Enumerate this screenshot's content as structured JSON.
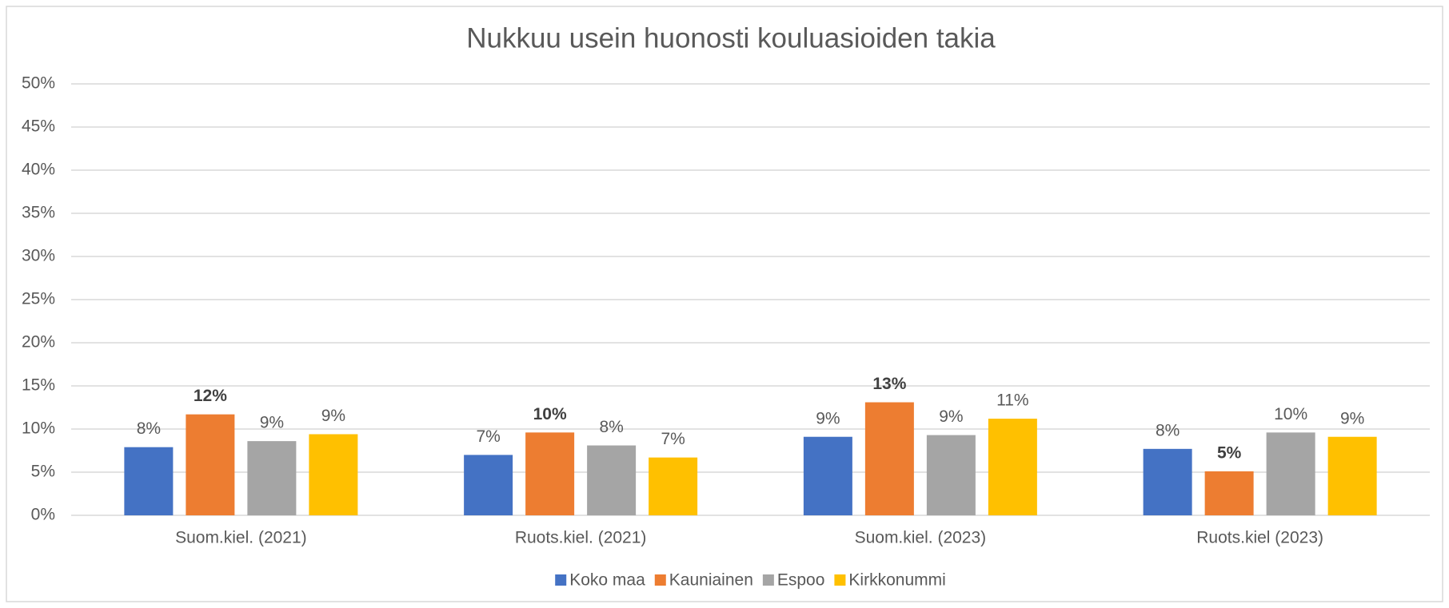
{
  "chart_data": {
    "type": "bar",
    "title": "Nukkuu usein huonosti kouluasioiden takia",
    "categories": [
      "Suom.kiel. (2021)",
      "Ruots.kiel. (2021)",
      "Suom.kiel. (2023)",
      "Ruots.kiel (2023)"
    ],
    "series": [
      {
        "name": "Koko maa",
        "color": "#4472c4",
        "values": [
          7.9,
          7.0,
          9.1,
          7.7
        ],
        "value_labels": [
          "8%",
          "7%",
          "9%",
          "8%"
        ],
        "label_bold": false
      },
      {
        "name": "Kauniainen",
        "color": "#ed7d31",
        "values": [
          11.7,
          9.6,
          13.1,
          5.1
        ],
        "value_labels": [
          "12%",
          "10%",
          "13%",
          "5%"
        ],
        "label_bold": true
      },
      {
        "name": "Espoo",
        "color": "#a5a5a5",
        "values": [
          8.6,
          8.1,
          9.3,
          9.6
        ],
        "value_labels": [
          "9%",
          "8%",
          "9%",
          "10%"
        ],
        "label_bold": false
      },
      {
        "name": "Kirkkonummi",
        "color": "#ffc000",
        "values": [
          9.4,
          6.7,
          11.2,
          9.1
        ],
        "value_labels": [
          "9%",
          "7%",
          "11%",
          "9%"
        ],
        "label_bold": false
      }
    ],
    "ylim": [
      0,
      50
    ],
    "yticks": [
      {
        "value": 0,
        "label": "0%"
      },
      {
        "value": 5,
        "label": "5%"
      },
      {
        "value": 10,
        "label": "10%"
      },
      {
        "value": 15,
        "label": "15%"
      },
      {
        "value": 20,
        "label": "20%"
      },
      {
        "value": 25,
        "label": "25%"
      },
      {
        "value": 30,
        "label": "30%"
      },
      {
        "value": 35,
        "label": "35%"
      },
      {
        "value": 40,
        "label": "40%"
      },
      {
        "value": 45,
        "label": "45%"
      },
      {
        "value": 50,
        "label": "50%"
      }
    ],
    "grid": true,
    "legend": "bottom"
  }
}
